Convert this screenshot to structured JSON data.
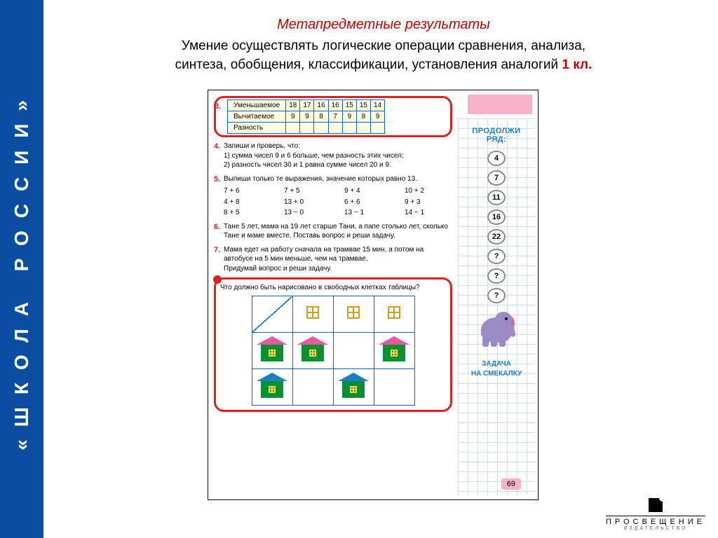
{
  "sidebar": {
    "title": "«ШКОЛА РОССИИ»"
  },
  "header": {
    "title": "Метапредметные результаты",
    "subtitle_1": "Умение осуществлять логические операции сравнения, анализа,",
    "subtitle_2": "синтеза, обобщения, классификации, установления аналогий ",
    "grade": "1 кл."
  },
  "ex3": {
    "num": "3.",
    "rows": [
      {
        "label": "Уменьшаемое",
        "cells": [
          "18",
          "17",
          "16",
          "16",
          "15",
          "15",
          "14"
        ]
      },
      {
        "label": "Вычитаемое",
        "cells": [
          "9",
          "9",
          "8",
          "7",
          "9",
          "8",
          "9"
        ]
      },
      {
        "label": "Разность",
        "cells": [
          "",
          "",
          "",
          "",
          "",
          "",
          ""
        ]
      }
    ]
  },
  "ex4": {
    "num": "4.",
    "lead": "Запиши и проверь, что:",
    "l1": "1) сумма чисел 9 и 6 больше, чем разность этих чисел;",
    "l2": "2) разность чисел 30 и 1 равна сумме чисел 20 и 9."
  },
  "ex5": {
    "num": "5.",
    "lead": "Выпиши только те выражения, значение которых равно 13.",
    "grid": [
      "7 + 6",
      "7 + 5",
      "9 + 4",
      "10 + 2",
      "4 + 8",
      "13 + 0",
      "6 + 6",
      "9 + 3",
      "8 + 5",
      "13 − 0",
      "13 − 1",
      "14 − 1"
    ]
  },
  "ex6": {
    "num": "6.",
    "text": "Тане 5 лет, мама на 19 лет старше Тани, а папе столько лет, сколько Тане и маме вместе. Поставь вопрос и реши задачу."
  },
  "ex7": {
    "num": "7.",
    "text": "Мама едет на работу сначала на трамвае 15 мин, а потом на автобусе на 5 мин меньше, чем на трамвае.",
    "sub": "Придумай вопрос и реши задачу."
  },
  "ex8": {
    "text": "Что должно быть нарисовано в свободных клетках таблицы?"
  },
  "sequence": {
    "title1": "ПРОДОЛЖИ",
    "title2": "РЯД:",
    "values": [
      "4",
      "7",
      "11",
      "16",
      "22",
      "?",
      "?",
      "?"
    ]
  },
  "puzzle": {
    "l1": "ЗАДАЧА",
    "l2": "НА СМЕКАЛКУ"
  },
  "page_num": "69",
  "publisher": {
    "name": "ПРОСВЕЩЕНИЕ",
    "sub": "ИЗДАТЕЛЬСТВО"
  },
  "colors": {
    "sidebar_bg": "#0a4da2",
    "accent_red": "#e02020",
    "link_blue": "#0066cc",
    "pink": "#f7b4c8",
    "green": "#0a9030",
    "roof_pink": "#e85aa0",
    "roof_blue": "#1a7fc4"
  }
}
